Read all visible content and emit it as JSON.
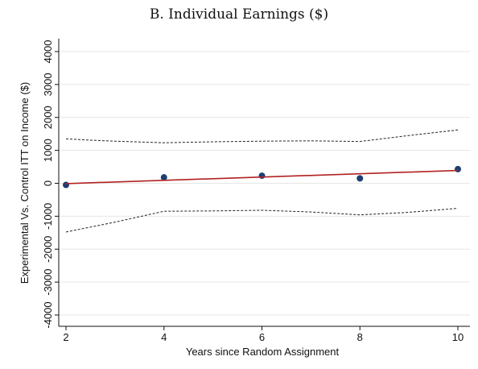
{
  "chart_data": {
    "type": "scatter",
    "title": "B. Individual Earnings ($)",
    "xlabel": "Years since Random Assignment",
    "ylabel": "Experimental Vs. Control ITT on Income ($)",
    "xlim": [
      2,
      10
    ],
    "ylim": [
      -4000,
      4000
    ],
    "x_ticks": [
      2,
      4,
      6,
      8,
      10
    ],
    "y_ticks": [
      -4000,
      -3000,
      -2000,
      -1000,
      0,
      1000,
      2000,
      3000,
      4000
    ],
    "grid": true,
    "legend": "none",
    "series": [
      {
        "role": "point-estimate",
        "style": "markers",
        "color": "#1f3f73",
        "x": [
          2,
          4,
          6,
          8,
          10
        ],
        "y": [
          -50,
          180,
          230,
          150,
          430
        ]
      },
      {
        "role": "fitted-line",
        "style": "solid",
        "color": "#b22222",
        "x": [
          2,
          10
        ],
        "y": [
          -10,
          390
        ]
      },
      {
        "role": "upper-ci",
        "style": "dashed",
        "color": "#222222",
        "x": [
          2,
          2.5,
          3,
          4,
          5,
          6,
          7,
          8,
          9,
          10
        ],
        "y": [
          1350,
          1310,
          1280,
          1230,
          1260,
          1280,
          1290,
          1270,
          1450,
          1620
        ]
      },
      {
        "role": "lower-ci",
        "style": "dashed",
        "color": "#222222",
        "x": [
          2,
          3,
          4,
          5,
          6,
          7,
          8,
          9,
          10
        ],
        "y": [
          -1480,
          -1180,
          -850,
          -840,
          -820,
          -870,
          -960,
          -880,
          -760
        ]
      }
    ]
  }
}
